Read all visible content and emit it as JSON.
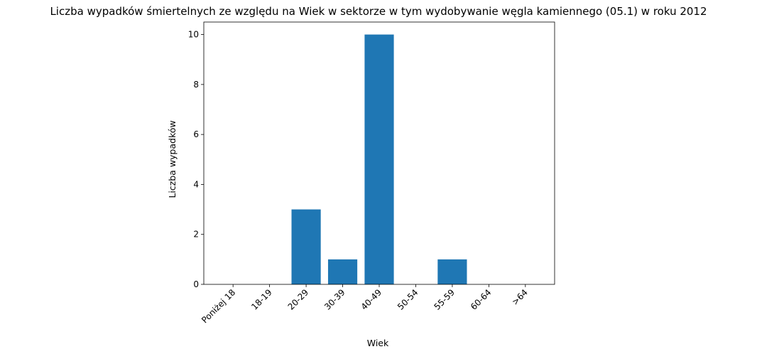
{
  "chart_data": {
    "type": "bar",
    "title": "Liczba wypadków śmiertelnych ze względu na Wiek w sektorze    w tym wydobywanie węgla kamiennego (05.1) w roku 2012",
    "xlabel": "Wiek",
    "ylabel": "Liczba wypadków",
    "categories": [
      "Poniżej 18",
      "18-19",
      "20-29",
      "30-39",
      "40-49",
      "50-54",
      "55-59",
      "60-64",
      ">64"
    ],
    "values": [
      0,
      0,
      3,
      1,
      10,
      0,
      1,
      0,
      0
    ],
    "ylim": [
      0,
      10.5
    ],
    "yticks": [
      0,
      2,
      4,
      6,
      8,
      10
    ],
    "grid": false,
    "bar_color": "#1f77b4",
    "xtick_rotation": 45
  }
}
